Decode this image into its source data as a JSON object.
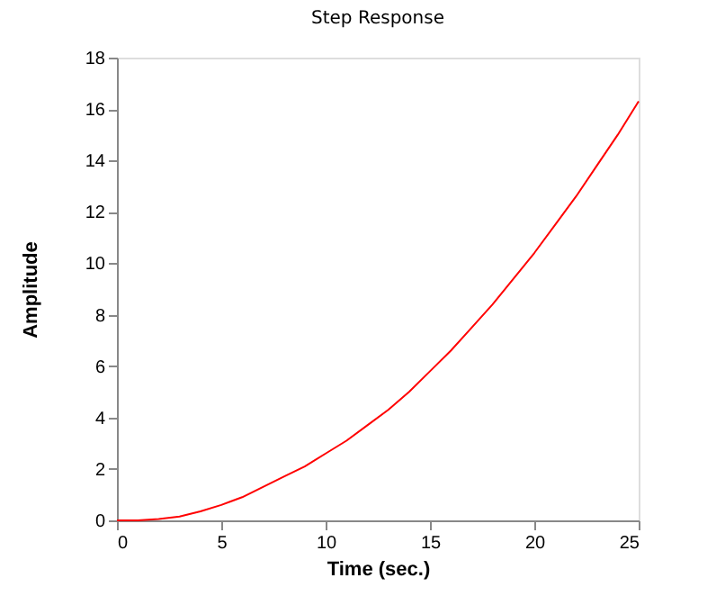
{
  "chart_data": {
    "type": "line",
    "title": "Step Response",
    "xlabel": "Time (sec.)",
    "ylabel": "Amplitude",
    "x": [
      0,
      1,
      2,
      3,
      4,
      5,
      6,
      7,
      8,
      9,
      10,
      11,
      12,
      13,
      14,
      15,
      16,
      17,
      18,
      19,
      20,
      21,
      22,
      23,
      24,
      25
    ],
    "series": [
      {
        "color": "#ff0000",
        "values": [
          0,
          0,
          0.05,
          0.15,
          0.35,
          0.6,
          0.9,
          1.3,
          1.7,
          2.1,
          2.6,
          3.1,
          3.7,
          4.3,
          5.0,
          5.8,
          6.6,
          7.5,
          8.4,
          9.4,
          10.4,
          11.5,
          12.6,
          13.8,
          15.0,
          16.3
        ]
      }
    ],
    "xlim": [
      0,
      25
    ],
    "xticks": [
      0,
      5,
      10,
      15,
      20,
      25
    ],
    "ylim": [
      0,
      18
    ],
    "yticks": [
      0,
      2,
      4,
      6,
      8,
      10,
      12,
      14,
      16,
      18
    ],
    "grid": false,
    "legend": false
  }
}
